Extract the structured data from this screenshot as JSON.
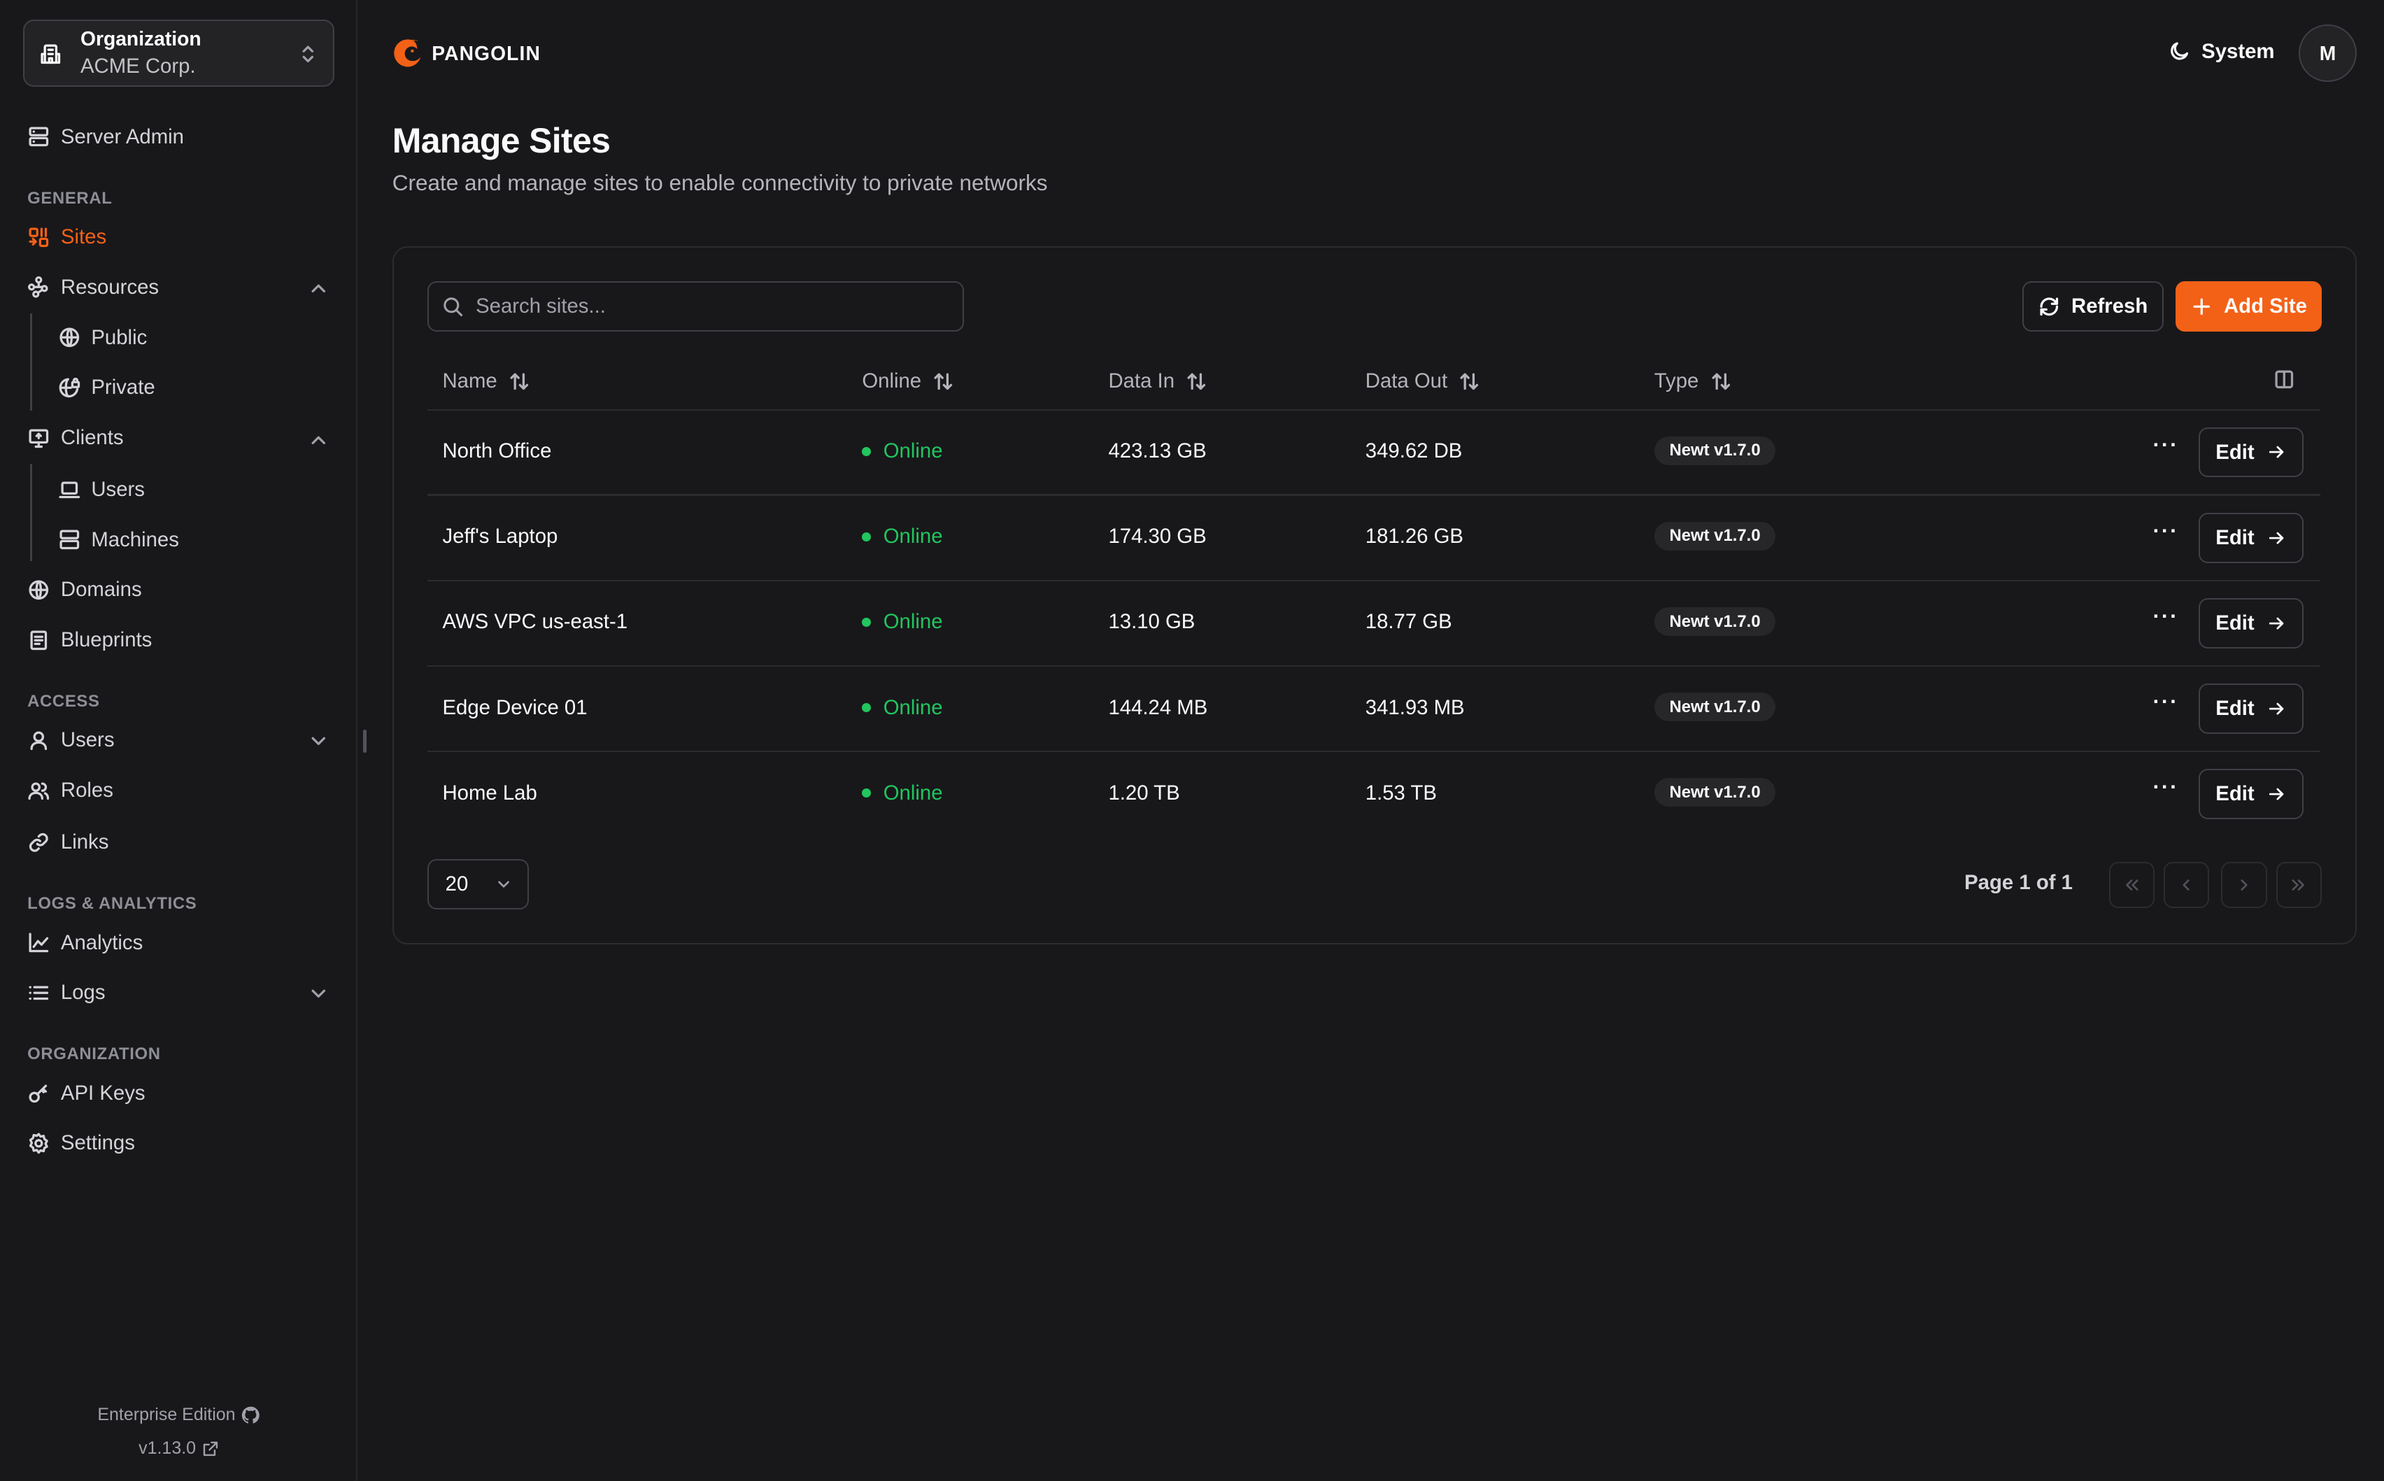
{
  "org_switcher": {
    "label": "Organization",
    "value": "ACME Corp."
  },
  "sidebar": {
    "server_admin": "Server Admin",
    "sections": {
      "general": "GENERAL",
      "access": "ACCESS",
      "logs": "LOGS & ANALYTICS",
      "organization": "ORGANIZATION"
    },
    "items": {
      "sites": "Sites",
      "resources": "Resources",
      "public": "Public",
      "private": "Private",
      "clients": "Clients",
      "users_client": "Users",
      "machines": "Machines",
      "domains": "Domains",
      "blueprints": "Blueprints",
      "users": "Users",
      "roles": "Roles",
      "links": "Links",
      "analytics": "Analytics",
      "logs": "Logs",
      "api_keys": "API Keys",
      "settings": "Settings"
    },
    "footer": {
      "edition": "Enterprise Edition",
      "version": "v1.13.0"
    }
  },
  "header": {
    "brand": "PANGOLIN",
    "theme": "System",
    "avatar": "M"
  },
  "page": {
    "title": "Manage Sites",
    "subtitle": "Create and manage sites to enable connectivity to private networks"
  },
  "toolbar": {
    "search_placeholder": "Search sites...",
    "refresh": "Refresh",
    "add": "Add Site"
  },
  "table": {
    "columns": [
      "Name",
      "Online",
      "Data In",
      "Data Out",
      "Type"
    ],
    "rows": [
      {
        "name": "North Office",
        "status": "Online",
        "in": "423.13 GB",
        "out": "349.62 DB",
        "type": "Newt v1.7.0"
      },
      {
        "name": "Jeff's Laptop",
        "status": "Online",
        "in": "174.30 GB",
        "out": "181.26 GB",
        "type": "Newt v1.7.0"
      },
      {
        "name": "AWS VPC us-east-1",
        "status": "Online",
        "in": "13.10 GB",
        "out": "18.77 GB",
        "type": "Newt v1.7.0"
      },
      {
        "name": "Edge Device 01",
        "status": "Online",
        "in": "144.24 MB",
        "out": "341.93 MB",
        "type": "Newt v1.7.0"
      },
      {
        "name": "Home Lab",
        "status": "Online",
        "in": "1.20 TB",
        "out": "1.53 TB",
        "type": "Newt v1.7.0"
      }
    ],
    "edit_label": "Edit"
  },
  "pagination": {
    "page_size": "20",
    "page_text": "Page 1 of 1"
  },
  "colors": {
    "accent": "#f36117",
    "online": "#22c55e",
    "background": "#18181b"
  }
}
